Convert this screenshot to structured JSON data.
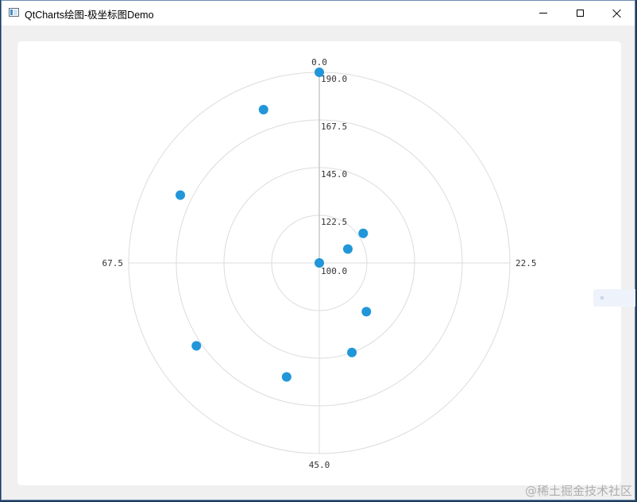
{
  "window": {
    "title": "QtCharts绘图-极坐标图Demo"
  },
  "colors": {
    "point": "#2196d9",
    "grid": "#dcdcdc",
    "axis": "#c8c8c8"
  },
  "watermark": "@稀土掘金技术社区",
  "chart_data": {
    "type": "scatter",
    "coordinate_system": "polar",
    "angular_axis": {
      "range": [
        0,
        90
      ],
      "tick_labels": [
        "0.0",
        "22.5",
        "45.0",
        "67.5"
      ],
      "tick_values": [
        0,
        22.5,
        45,
        67.5
      ],
      "direction": "clockwise",
      "zero_at": "top"
    },
    "radial_axis": {
      "range": [
        100,
        190
      ],
      "tick_labels": [
        "100.0",
        "122.5",
        "145.0",
        "167.5",
        "190.0"
      ],
      "tick_values": [
        100,
        122.5,
        145,
        167.5,
        190
      ]
    },
    "grid": true,
    "legend": "none",
    "series": [
      {
        "points": [
          {
            "angle": 0,
            "radius": 100
          },
          {
            "angle": 16,
            "radius": 115
          },
          {
            "angle": 14,
            "radius": 125
          },
          {
            "angle": 34,
            "radius": 132
          },
          {
            "angle": 40,
            "radius": 145
          },
          {
            "angle": 49,
            "radius": 156
          },
          {
            "angle": 59,
            "radius": 170
          },
          {
            "angle": 74,
            "radius": 173
          },
          {
            "angle": 85,
            "radius": 177
          },
          {
            "angle": 90,
            "radius": 190
          }
        ]
      }
    ]
  }
}
